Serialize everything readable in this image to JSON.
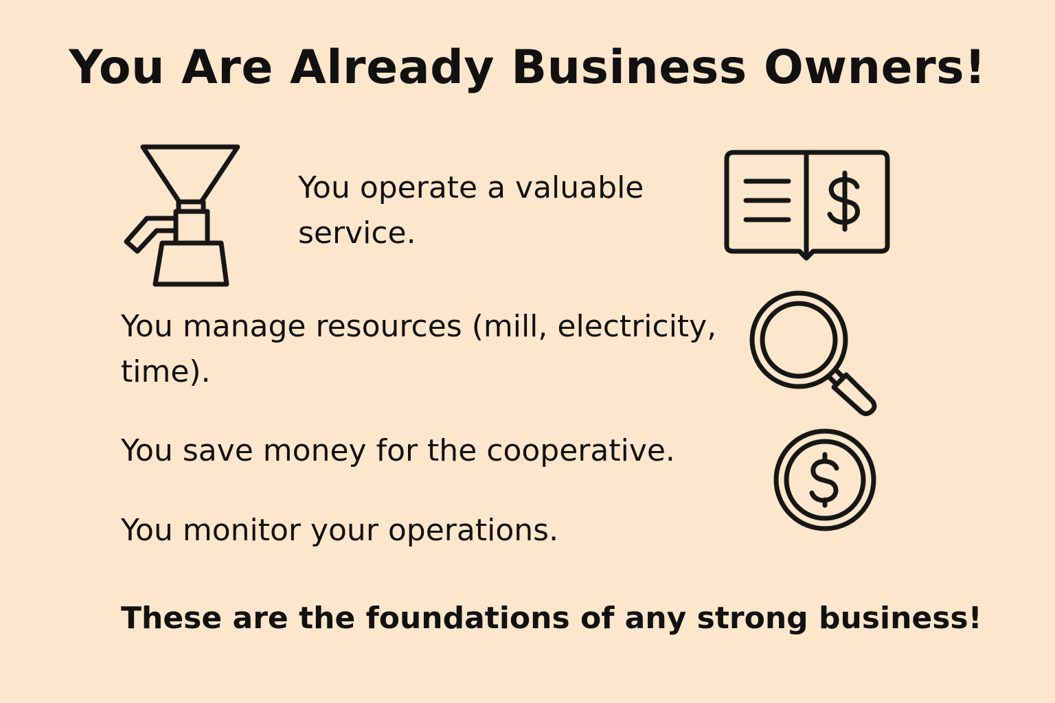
{
  "title": "You Are Already Business Owners!",
  "points": [
    {
      "line1": "You operate a valuable",
      "line2": "service.",
      "icon": "grain-mill-icon"
    },
    {
      "line1": "You manage resources (mill, electricity,",
      "line2": "time).",
      "icon": "magnifying-glass-icon"
    },
    {
      "line1": "You save money for the cooperative.",
      "icon": "dollar-coin-icon"
    },
    {
      "line1": "You monitor your operations."
    }
  ],
  "ledger_icon": "ledger-book-dollar-icon",
  "closing": "These are the foundations of any strong business!",
  "colors": {
    "background": "#fde6cc",
    "text": "#111111",
    "icon_stroke": "#161616"
  }
}
